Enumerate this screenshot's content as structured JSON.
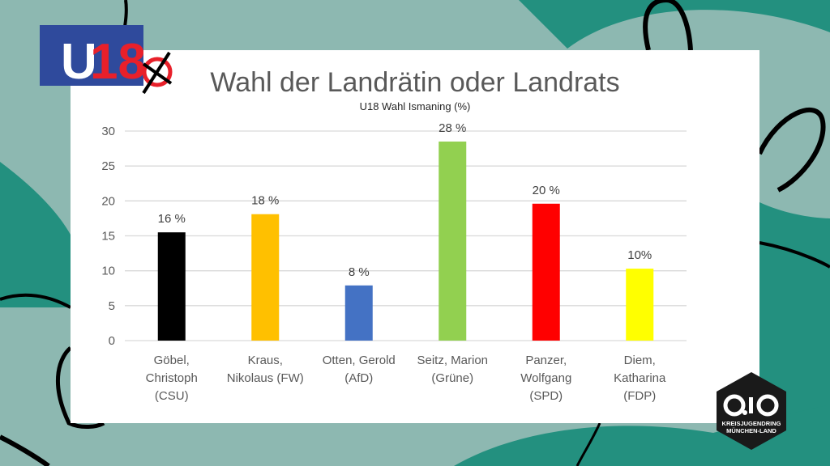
{
  "slide": {
    "background_colors": {
      "sage": "#8db8b1",
      "teal": "#23907f"
    },
    "logo_left": {
      "text": "U18",
      "icon": "ballot-cross-icon"
    },
    "logo_right": {
      "text": "O.J.O",
      "line1": "KREISJUGENDRING",
      "line2": "MÜNCHEN-LAND"
    }
  },
  "chart_data": {
    "type": "bar",
    "title": "Wahl der Landrätin oder Landrats",
    "subtitle": "U18 Wahl Ismaning (%)",
    "xlabel": "",
    "ylabel": "",
    "ylim": [
      0,
      30
    ],
    "yticks": [
      0,
      5,
      10,
      15,
      20,
      25,
      30
    ],
    "grid": true,
    "legend": "none",
    "categories": [
      [
        "Göbel,",
        "Christoph",
        "(CSU)"
      ],
      [
        "Kraus,",
        "Nikolaus (FW)"
      ],
      [
        "Otten, Gerold",
        "(AfD)"
      ],
      [
        "Seitz, Marion",
        "(Grüne)"
      ],
      [
        "Panzer,",
        "Wolfgang",
        "(SPD)"
      ],
      [
        "Diem,",
        "Katharina",
        "(FDP)"
      ]
    ],
    "values": [
      15.5,
      18.1,
      7.9,
      28.5,
      19.6,
      10.3
    ],
    "data_labels": [
      "16 %",
      "18 %",
      "8 %",
      "28 %",
      "20 %",
      "10%"
    ],
    "colors": [
      "#000000",
      "#ffc000",
      "#4472c4",
      "#92d050",
      "#ff0000",
      "#ffff00"
    ]
  }
}
